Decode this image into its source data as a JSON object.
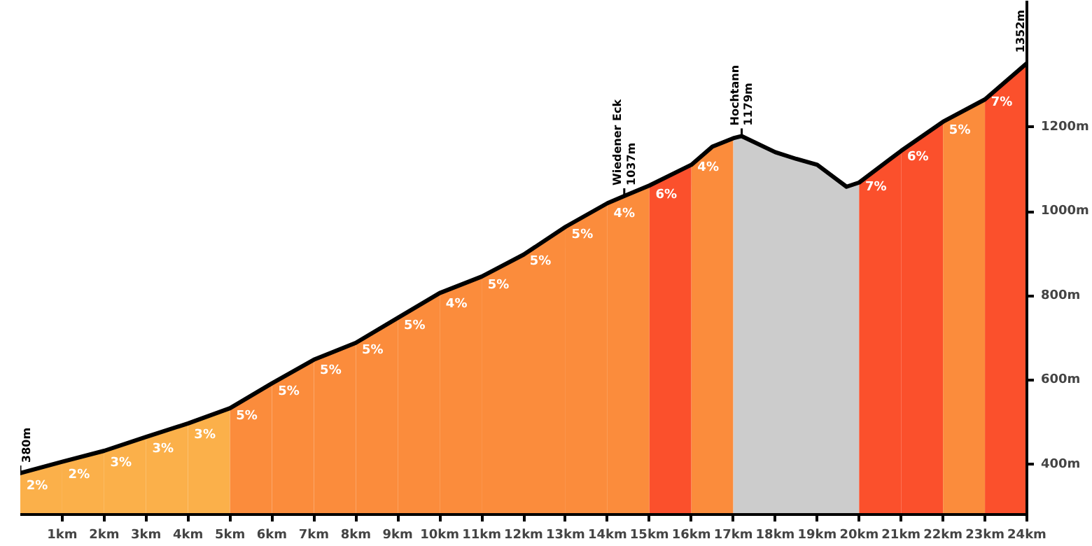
{
  "chart_data": {
    "type": "area",
    "xlim": [
      0,
      24
    ],
    "ylim": [
      282,
      1500
    ],
    "xticks": [
      {
        "value": 1,
        "label": "1km"
      },
      {
        "value": 2,
        "label": "2km"
      },
      {
        "value": 3,
        "label": "3km"
      },
      {
        "value": 4,
        "label": "4km"
      },
      {
        "value": 5,
        "label": "5km"
      },
      {
        "value": 6,
        "label": "6km"
      },
      {
        "value": 7,
        "label": "7km"
      },
      {
        "value": 8,
        "label": "8km"
      },
      {
        "value": 9,
        "label": "9km"
      },
      {
        "value": 10,
        "label": "10km"
      },
      {
        "value": 11,
        "label": "11km"
      },
      {
        "value": 12,
        "label": "12km"
      },
      {
        "value": 13,
        "label": "13km"
      },
      {
        "value": 14,
        "label": "14km"
      },
      {
        "value": 15,
        "label": "15km"
      },
      {
        "value": 16,
        "label": "16km"
      },
      {
        "value": 17,
        "label": "17km"
      },
      {
        "value": 18,
        "label": "18km"
      },
      {
        "value": 19,
        "label": "19km"
      },
      {
        "value": 20,
        "label": "20km"
      },
      {
        "value": 21,
        "label": "21km"
      },
      {
        "value": 22,
        "label": "22km"
      },
      {
        "value": 23,
        "label": "23km"
      },
      {
        "value": 24,
        "label": "24km"
      }
    ],
    "yticks": [
      {
        "value": 400,
        "label": "400m"
      },
      {
        "value": 600,
        "label": "600m"
      },
      {
        "value": 800,
        "label": "800m"
      },
      {
        "value": 1000,
        "label": "1000m"
      },
      {
        "value": 1200,
        "label": "1200m"
      }
    ],
    "series": [
      {
        "name": "2%",
        "color": "#fbb04a",
        "x": [
          0,
          1
        ],
        "values": [
          380,
          407
        ]
      },
      {
        "name": "2%",
        "color": "#fbb04a",
        "x": [
          1,
          2
        ],
        "values": [
          407,
          433
        ]
      },
      {
        "name": "3%",
        "color": "#fbb04a",
        "x": [
          2,
          3
        ],
        "values": [
          433,
          466
        ]
      },
      {
        "name": "3%",
        "color": "#fbb04a",
        "x": [
          3,
          4
        ],
        "values": [
          466,
          498
        ]
      },
      {
        "name": "3%",
        "color": "#fbb04a",
        "x": [
          4,
          5
        ],
        "values": [
          498,
          534
        ]
      },
      {
        "name": "5%",
        "color": "#fb8c3c",
        "x": [
          5,
          6
        ],
        "values": [
          534,
          593
        ]
      },
      {
        "name": "5%",
        "color": "#fb8c3c",
        "x": [
          6,
          7
        ],
        "values": [
          593,
          649
        ]
      },
      {
        "name": "5%",
        "color": "#fb8c3c",
        "x": [
          7,
          8
        ],
        "values": [
          649,
          689
        ]
      },
      {
        "name": "5%",
        "color": "#fb8c3c",
        "x": [
          8,
          9
        ],
        "values": [
          689,
          748
        ]
      },
      {
        "name": "5%",
        "color": "#fb8c3c",
        "x": [
          9,
          10
        ],
        "values": [
          748,
          807
        ]
      },
      {
        "name": "4%",
        "color": "#fb8c3c",
        "x": [
          10,
          11
        ],
        "values": [
          807,
          846
        ]
      },
      {
        "name": "5%",
        "color": "#fb8c3c",
        "x": [
          11,
          12
        ],
        "values": [
          846,
          898
        ]
      },
      {
        "name": "5%",
        "color": "#fb8c3c",
        "x": [
          12,
          13
        ],
        "values": [
          898,
          964
        ]
      },
      {
        "name": "5%",
        "color": "#fb8c3c",
        "x": [
          13,
          14
        ],
        "values": [
          964,
          1020
        ]
      },
      {
        "name": "4%",
        "color": "#fb8c3c",
        "x": [
          14,
          14.4,
          15
        ],
        "values": [
          1020,
          1037,
          1062
        ]
      },
      {
        "name": "6%",
        "color": "#fb502c",
        "x": [
          15,
          16
        ],
        "values": [
          1062,
          1111
        ]
      },
      {
        "name": "4%",
        "color": "#fb8c3c",
        "x": [
          16,
          16.5,
          17
        ],
        "values": [
          1111,
          1154,
          1174
        ]
      },
      {
        "color": "#cccccc",
        "x": [
          17,
          17.2,
          18,
          18.5,
          19,
          19.7,
          20
        ],
        "values": [
          1174,
          1179,
          1141,
          1125,
          1111,
          1059,
          1069
        ]
      },
      {
        "name": "7%",
        "color": "#fb502c",
        "x": [
          20,
          21
        ],
        "values": [
          1069,
          1144
        ]
      },
      {
        "name": "6%",
        "color": "#fb502c",
        "x": [
          21,
          22
        ],
        "values": [
          1144,
          1213
        ]
      },
      {
        "name": "5%",
        "color": "#fb8c3c",
        "x": [
          22,
          23
        ],
        "values": [
          1213,
          1266
        ]
      },
      {
        "name": "7%",
        "color": "#fb502c",
        "x": [
          23,
          24
        ],
        "values": [
          1266,
          1352
        ]
      },
      {
        "type": "line",
        "color": "#000000",
        "x": [
          0,
          1,
          2,
          3,
          4,
          5,
          6,
          7,
          8,
          9,
          10,
          11,
          12,
          13,
          14,
          14.4,
          15,
          16,
          16.5,
          17,
          17.2,
          18,
          18.5,
          19,
          19.7,
          20,
          21,
          22,
          23,
          24
        ],
        "values": [
          380,
          407,
          433,
          466,
          498,
          534,
          593,
          649,
          689,
          748,
          807,
          846,
          898,
          964,
          1020,
          1037,
          1062,
          1111,
          1154,
          1174,
          1179,
          1141,
          1125,
          1111,
          1059,
          1069,
          1144,
          1213,
          1266,
          1352
        ]
      }
    ],
    "annotations": [
      {
        "text": "380m",
        "x": 0,
        "y": 380
      },
      {
        "text": "Wiedener Eck\n1037m",
        "x": 14.4,
        "y": 1037
      },
      {
        "text": "Hochtann\n1179m",
        "x": 17.2,
        "y": 1179
      },
      {
        "text": "1352m",
        "x": 24,
        "y": 1352
      }
    ]
  }
}
